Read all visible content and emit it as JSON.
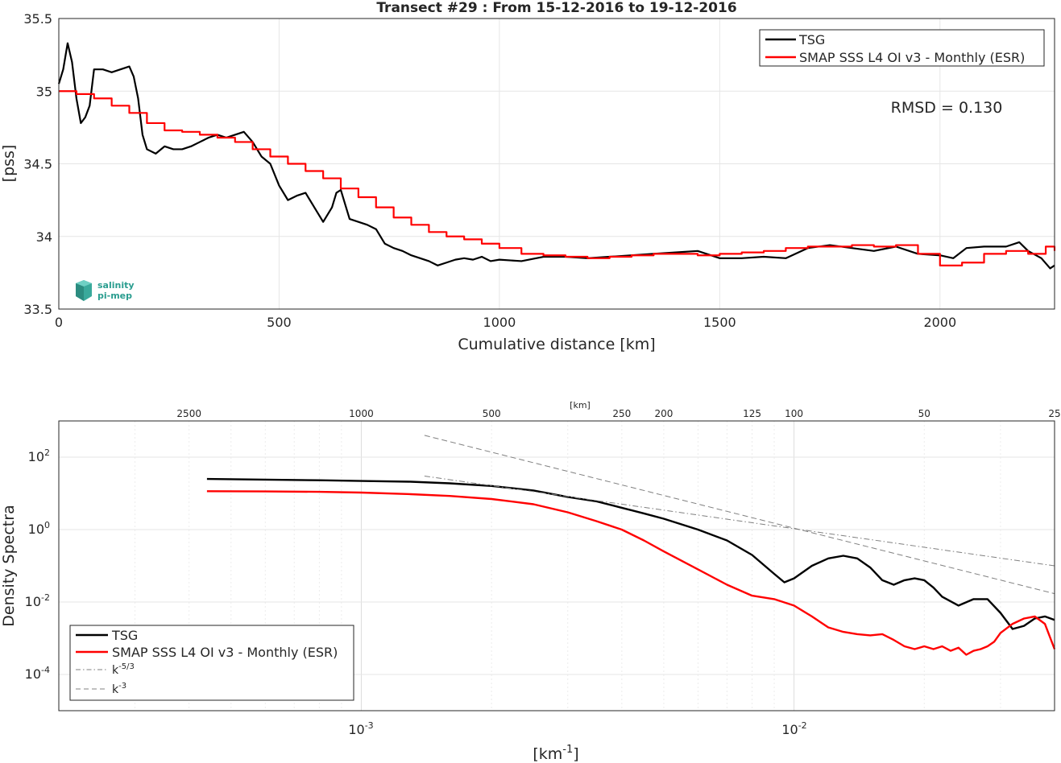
{
  "chart_data": [
    {
      "type": "line",
      "title": "Transect #29 : From 15-12-2016 to 19-12-2016",
      "xlabel": "Cumulative distance [km]",
      "ylabel": "[pss]",
      "xlim": [
        0,
        2260
      ],
      "ylim": [
        33.5,
        35.5
      ],
      "xticks": [
        "0",
        "500",
        "1000",
        "1500",
        "2000"
      ],
      "yticks": [
        "33.5",
        "34",
        "34.5",
        "35",
        "35.5"
      ],
      "grid": true,
      "legend_position": "top-right",
      "annotation": "RMSD = 0.130",
      "series": [
        {
          "name": "TSG",
          "color": "#000000",
          "x": [
            0,
            10,
            20,
            30,
            40,
            50,
            60,
            70,
            80,
            90,
            100,
            120,
            140,
            160,
            170,
            180,
            190,
            200,
            220,
            240,
            260,
            280,
            300,
            320,
            340,
            360,
            380,
            400,
            420,
            440,
            460,
            480,
            500,
            520,
            540,
            560,
            580,
            600,
            620,
            630,
            640,
            660,
            680,
            700,
            720,
            740,
            760,
            780,
            800,
            820,
            840,
            860,
            880,
            900,
            920,
            940,
            960,
            980,
            1000,
            1050,
            1100,
            1150,
            1200,
            1250,
            1300,
            1350,
            1400,
            1450,
            1500,
            1550,
            1600,
            1650,
            1700,
            1750,
            1800,
            1850,
            1900,
            1950,
            2000,
            2030,
            2060,
            2100,
            2150,
            2180,
            2200,
            2230,
            2250,
            2260
          ],
          "y": [
            35.05,
            35.15,
            35.33,
            35.2,
            34.95,
            34.78,
            34.82,
            34.9,
            35.15,
            35.15,
            35.15,
            35.13,
            35.15,
            35.17,
            35.1,
            34.95,
            34.7,
            34.6,
            34.57,
            34.62,
            34.6,
            34.6,
            34.62,
            34.65,
            34.68,
            34.7,
            34.68,
            34.7,
            34.72,
            34.65,
            34.55,
            34.5,
            34.35,
            34.25,
            34.28,
            34.3,
            34.2,
            34.1,
            34.2,
            34.3,
            34.32,
            34.12,
            34.1,
            34.08,
            34.05,
            33.95,
            33.92,
            33.9,
            33.87,
            33.85,
            33.83,
            33.8,
            33.82,
            33.84,
            33.85,
            33.84,
            33.86,
            33.83,
            33.84,
            33.83,
            33.86,
            33.86,
            33.85,
            33.86,
            33.87,
            33.88,
            33.89,
            33.9,
            33.85,
            33.85,
            33.86,
            33.85,
            33.92,
            33.94,
            33.92,
            33.9,
            33.93,
            33.88,
            33.87,
            33.85,
            33.92,
            33.93,
            33.93,
            33.96,
            33.9,
            33.85,
            33.78,
            33.8
          ]
        },
        {
          "name": "SMAP SSS L4 OI v3 - Monthly (ESR)",
          "color": "#ff0000",
          "x": [
            0,
            40,
            80,
            120,
            160,
            200,
            240,
            280,
            320,
            360,
            400,
            440,
            480,
            520,
            560,
            600,
            640,
            680,
            720,
            760,
            800,
            840,
            880,
            920,
            960,
            1000,
            1050,
            1100,
            1150,
            1200,
            1250,
            1300,
            1350,
            1400,
            1450,
            1500,
            1550,
            1600,
            1650,
            1700,
            1750,
            1800,
            1850,
            1900,
            1950,
            2000,
            2050,
            2100,
            2150,
            2200,
            2240,
            2260
          ],
          "y": [
            35.0,
            34.98,
            34.95,
            34.9,
            34.85,
            34.78,
            34.73,
            34.72,
            34.7,
            34.68,
            34.65,
            34.6,
            34.55,
            34.5,
            34.45,
            34.4,
            34.33,
            34.27,
            34.2,
            34.13,
            34.08,
            34.03,
            34.0,
            33.98,
            33.95,
            33.92,
            33.88,
            33.87,
            33.86,
            33.85,
            33.86,
            33.87,
            33.88,
            33.88,
            33.87,
            33.88,
            33.89,
            33.9,
            33.92,
            33.93,
            33.93,
            33.94,
            33.93,
            33.94,
            33.88,
            33.8,
            33.82,
            33.88,
            33.9,
            33.88,
            33.93,
            33.9
          ]
        }
      ]
    },
    {
      "type": "line",
      "title": "",
      "xlabel": "[km-1]",
      "ylabel": "Density Spectra",
      "top_axis_label": "[km]",
      "top_ticks": [
        "2500",
        "1000",
        "500",
        "250",
        "200",
        "125",
        "100",
        "50",
        "25"
      ],
      "xscale": "log",
      "yscale": "log",
      "xlim": [
        0.0002,
        0.04
      ],
      "ylim": [
        1e-05,
        1000
      ],
      "grid": true,
      "legend_position": "bottom-left",
      "series": [
        {
          "name": "TSG",
          "color": "#000000",
          "x": [
            0.00044,
            0.0006,
            0.0008,
            0.001,
            0.0013,
            0.0016,
            0.002,
            0.0025,
            0.003,
            0.0035,
            0.004,
            0.0045,
            0.005,
            0.006,
            0.007,
            0.008,
            0.009,
            0.0095,
            0.01,
            0.011,
            0.012,
            0.013,
            0.014,
            0.015,
            0.016,
            0.017,
            0.018,
            0.019,
            0.02,
            0.021,
            0.022,
            0.024,
            0.026,
            0.028,
            0.03,
            0.032,
            0.034,
            0.036,
            0.038,
            0.04
          ],
          "y": [
            25,
            24,
            23,
            22,
            21,
            19,
            16,
            12,
            8,
            6,
            4,
            2.8,
            2.0,
            1.0,
            0.5,
            0.2,
            0.06,
            0.035,
            0.045,
            0.1,
            0.16,
            0.19,
            0.16,
            0.09,
            0.04,
            0.03,
            0.04,
            0.045,
            0.04,
            0.025,
            0.014,
            0.008,
            0.012,
            0.012,
            0.005,
            0.0018,
            0.0022,
            0.0035,
            0.004,
            0.0032
          ]
        },
        {
          "name": "SMAP SSS L4 OI v3 - Monthly (ESR)",
          "color": "#ff0000",
          "x": [
            0.00044,
            0.0006,
            0.0008,
            0.001,
            0.0013,
            0.0016,
            0.002,
            0.0025,
            0.003,
            0.0035,
            0.004,
            0.0045,
            0.005,
            0.006,
            0.007,
            0.008,
            0.009,
            0.01,
            0.011,
            0.012,
            0.013,
            0.014,
            0.015,
            0.016,
            0.017,
            0.018,
            0.019,
            0.02,
            0.021,
            0.022,
            0.023,
            0.024,
            0.025,
            0.026,
            0.027,
            0.028,
            0.029,
            0.03,
            0.032,
            0.034,
            0.036,
            0.038,
            0.04
          ],
          "y": [
            11.5,
            11.3,
            11,
            10.5,
            9.5,
            8.5,
            7,
            5,
            3,
            1.7,
            1.0,
            0.5,
            0.25,
            0.08,
            0.03,
            0.015,
            0.012,
            0.008,
            0.004,
            0.002,
            0.0015,
            0.0013,
            0.0012,
            0.0013,
            0.0009,
            0.0006,
            0.0005,
            0.0006,
            0.0005,
            0.0006,
            0.00045,
            0.00055,
            0.00035,
            0.00045,
            0.0005,
            0.0006,
            0.0008,
            0.0014,
            0.0025,
            0.0035,
            0.004,
            0.0025,
            0.0005
          ]
        },
        {
          "name": "k-5/3",
          "color": "#808080",
          "dash": "dashdot",
          "x": [
            0.0014,
            0.04
          ],
          "y": [
            30,
            0.1
          ]
        },
        {
          "name": "k-3",
          "color": "#808080",
          "dash": "dashed",
          "x": [
            0.0014,
            0.04
          ],
          "y": [
            400,
            0.017
          ]
        }
      ],
      "legend_labels": [
        "TSG",
        "SMAP SSS L4 OI v3 - Monthly (ESR)",
        "k",
        "k"
      ],
      "legend_superscripts": [
        "-5/3",
        "-3"
      ]
    }
  ],
  "logo": {
    "line1": "salinity",
    "line2": "pi-mep"
  },
  "xlabel2_parts": {
    "base": "[km",
    "sup": "-1",
    "close": "]"
  },
  "ytick_log": {
    "base": "10",
    "exps": [
      "-4",
      "-2",
      "0",
      "2"
    ]
  },
  "xtick_log": {
    "base": "10",
    "exps": [
      "-3",
      "-2"
    ]
  }
}
